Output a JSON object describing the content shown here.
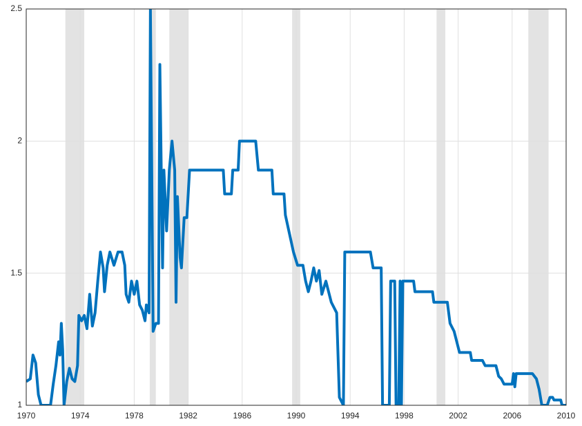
{
  "chart_data": {
    "type": "line",
    "x": [
      1970.0,
      1970.3,
      1970.5,
      1970.7,
      1970.9,
      1971.1,
      1971.8,
      1972.0,
      1972.2,
      1972.4,
      1972.5,
      1972.6,
      1972.7,
      1972.8,
      1973.0,
      1973.2,
      1973.4,
      1973.6,
      1973.8,
      1973.9,
      1974.1,
      1974.3,
      1974.5,
      1974.7,
      1974.9,
      1975.1,
      1975.3,
      1975.5,
      1975.7,
      1975.8,
      1976.0,
      1976.2,
      1976.5,
      1976.8,
      1977.1,
      1977.3,
      1977.4,
      1977.6,
      1977.8,
      1978.0,
      1978.2,
      1978.4,
      1978.6,
      1978.8,
      1978.9,
      1979.1,
      1979.2,
      1979.4,
      1979.6,
      1979.8,
      1979.9,
      1980.1,
      1980.2,
      1980.4,
      1980.6,
      1980.8,
      1981.0,
      1981.1,
      1981.2,
      1981.4,
      1981.5,
      1981.7,
      1981.9,
      1982.1,
      1984.6,
      1984.7,
      1985.2,
      1985.3,
      1985.7,
      1985.8,
      1987.0,
      1987.2,
      1988.2,
      1988.3,
      1989.1,
      1989.2,
      1989.5,
      1989.8,
      1990.1,
      1990.5,
      1990.7,
      1990.9,
      1991.1,
      1991.3,
      1991.5,
      1991.7,
      1991.9,
      1992.2,
      1992.6,
      1993.0,
      1993.2,
      1993.5,
      1993.6,
      1995.5,
      1995.7,
      1996.3,
      1996.4,
      1996.9,
      1997.0,
      1997.3,
      1997.4,
      1997.6,
      1997.7,
      1997.8,
      1997.9,
      1998.7,
      1998.8,
      2000.1,
      2000.2,
      2001.2,
      2001.4,
      2001.7,
      2001.9,
      2002.1,
      2002.9,
      2003.0,
      2003.8,
      2004.0,
      2004.8,
      2005.0,
      2005.2,
      2005.4,
      2006.0,
      2006.1,
      2006.2,
      2006.3,
      2007.5,
      2007.8,
      2008.0,
      2008.2,
      2008.6,
      2008.8,
      2009.0,
      2009.1,
      2009.6,
      2009.7,
      2010.0
    ],
    "series": [
      {
        "color": "#0072bd",
        "values": [
          1.09,
          1.1,
          1.19,
          1.16,
          1.04,
          1.0,
          1.0,
          1.08,
          1.15,
          1.24,
          1.19,
          1.31,
          1.21,
          1.0,
          1.09,
          1.14,
          1.1,
          1.09,
          1.15,
          1.34,
          1.32,
          1.34,
          1.29,
          1.42,
          1.3,
          1.35,
          1.47,
          1.58,
          1.52,
          1.43,
          1.53,
          1.58,
          1.53,
          1.58,
          1.58,
          1.53,
          1.42,
          1.39,
          1.47,
          1.42,
          1.47,
          1.38,
          1.36,
          1.32,
          1.38,
          1.35,
          2.5,
          1.28,
          1.31,
          1.31,
          2.29,
          1.52,
          1.89,
          1.66,
          1.89,
          2.0,
          1.89,
          1.39,
          1.79,
          1.56,
          1.52,
          1.71,
          1.71,
          1.89,
          1.89,
          1.8,
          1.8,
          1.89,
          1.89,
          2.0,
          2.0,
          1.89,
          1.89,
          1.8,
          1.8,
          1.72,
          1.65,
          1.58,
          1.53,
          1.53,
          1.47,
          1.43,
          1.47,
          1.52,
          1.47,
          1.51,
          1.42,
          1.47,
          1.39,
          1.35,
          1.03,
          1.0,
          1.58,
          1.58,
          1.52,
          1.52,
          1.0,
          1.0,
          1.47,
          1.47,
          1.0,
          1.0,
          1.47,
          1.0,
          1.47,
          1.47,
          1.43,
          1.43,
          1.39,
          1.39,
          1.31,
          1.28,
          1.24,
          1.2,
          1.2,
          1.17,
          1.17,
          1.15,
          1.15,
          1.11,
          1.1,
          1.08,
          1.08,
          1.12,
          1.07,
          1.12,
          1.12,
          1.1,
          1.06,
          1.0,
          1.0,
          1.03,
          1.03,
          1.02,
          1.02,
          1.0,
          1.0
        ]
      }
    ],
    "shaded_regions": [
      [
        1972.9,
        1974.3
      ],
      [
        1979.15,
        1979.6
      ],
      [
        1980.6,
        1982.0
      ],
      [
        1989.7,
        1990.3
      ],
      [
        2000.4,
        2001.05
      ],
      [
        2007.2,
        2008.7
      ]
    ],
    "shade_color": "#e3e3e3",
    "xlim": [
      1970,
      2010
    ],
    "xticks": [
      1970,
      1974,
      1978,
      1982,
      1986,
      1990,
      1994,
      1998,
      2002,
      2006,
      2010
    ],
    "ylim": [
      1,
      2.5
    ],
    "yticks": [
      1,
      1.5,
      2,
      2.5
    ],
    "grid": true
  }
}
